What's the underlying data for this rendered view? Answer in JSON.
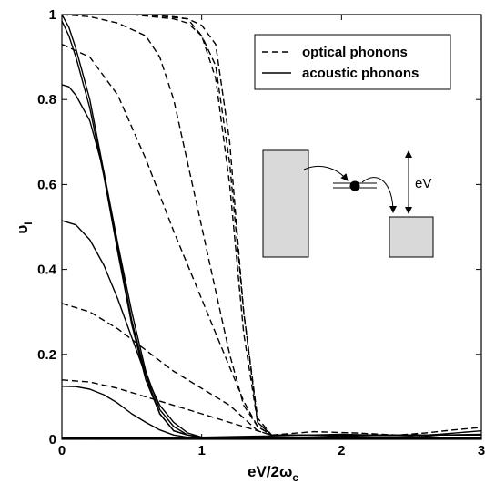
{
  "chart_data": {
    "type": "line",
    "xlabel": "eV/2ω",
    "xlabel_sub": "c",
    "ylabel": "υ",
    "ylabel_sub": "I",
    "xlim": [
      0,
      3
    ],
    "ylim": [
      0,
      1
    ],
    "xticks": [
      0,
      1,
      2,
      3
    ],
    "xtick_labels": [
      "0",
      "1",
      "2",
      "3"
    ],
    "yticks": [
      0,
      0.2,
      0.4,
      0.6,
      0.8,
      1
    ],
    "ytick_labels": [
      "0",
      "0.2",
      "0.4",
      "0.6",
      "0.8",
      "1"
    ],
    "grid": false,
    "legend": {
      "placement": "top-right",
      "entries": [
        {
          "label": "optical phonons",
          "style": "dashed"
        },
        {
          "label": "acoustic phonons",
          "style": "solid"
        }
      ]
    },
    "inset": {
      "label": "eV"
    },
    "series": [
      {
        "style": "dashed",
        "points": [
          [
            0,
            1
          ],
          [
            0.3,
            1
          ],
          [
            0.6,
            1
          ],
          [
            0.9,
            0.99
          ],
          [
            1.0,
            0.95
          ],
          [
            1.1,
            0.85
          ],
          [
            1.2,
            0.6
          ],
          [
            1.3,
            0.25
          ],
          [
            1.4,
            0.04
          ],
          [
            1.5,
            0.01
          ],
          [
            2.0,
            0.01
          ],
          [
            2.5,
            0.01
          ],
          [
            3.0,
            0.01
          ]
        ]
      },
      {
        "style": "dashed",
        "points": [
          [
            0,
            1
          ],
          [
            0.5,
            1
          ],
          [
            0.8,
            0.99
          ],
          [
            0.9,
            0.98
          ],
          [
            1.0,
            0.95
          ],
          [
            1.1,
            0.88
          ],
          [
            1.2,
            0.65
          ],
          [
            1.3,
            0.3
          ],
          [
            1.4,
            0.05
          ],
          [
            1.5,
            0.01
          ],
          [
            2.0,
            0.01
          ],
          [
            2.5,
            0.01
          ],
          [
            3.0,
            0.01
          ]
        ]
      },
      {
        "style": "dashed",
        "points": [
          [
            0,
            1
          ],
          [
            0.5,
            1
          ],
          [
            0.8,
            0.995
          ],
          [
            0.9,
            0.99
          ],
          [
            1.0,
            0.975
          ],
          [
            1.1,
            0.93
          ],
          [
            1.2,
            0.7
          ],
          [
            1.3,
            0.3
          ],
          [
            1.4,
            0.04
          ],
          [
            1.5,
            0.01
          ],
          [
            2.0,
            0.01
          ],
          [
            2.5,
            0.01
          ],
          [
            3.0,
            0.01
          ]
        ]
      },
      {
        "style": "dashed",
        "points": [
          [
            0,
            1
          ],
          [
            0.2,
            0.995
          ],
          [
            0.4,
            0.98
          ],
          [
            0.6,
            0.95
          ],
          [
            0.7,
            0.9
          ],
          [
            0.8,
            0.8
          ],
          [
            0.9,
            0.65
          ],
          [
            1.0,
            0.5
          ],
          [
            1.1,
            0.35
          ],
          [
            1.2,
            0.2
          ],
          [
            1.3,
            0.08
          ],
          [
            1.4,
            0.03
          ],
          [
            1.5,
            0.01
          ],
          [
            2.0,
            0.01
          ],
          [
            2.5,
            0.01
          ],
          [
            3.0,
            0.01
          ]
        ]
      },
      {
        "style": "dashed",
        "points": [
          [
            0,
            0.93
          ],
          [
            0.2,
            0.9
          ],
          [
            0.4,
            0.81
          ],
          [
            0.6,
            0.66
          ],
          [
            0.8,
            0.49
          ],
          [
            0.9,
            0.41
          ],
          [
            1.0,
            0.33
          ],
          [
            1.1,
            0.25
          ],
          [
            1.2,
            0.17
          ],
          [
            1.3,
            0.09
          ],
          [
            1.4,
            0.03
          ],
          [
            1.5,
            0.01
          ],
          [
            2.0,
            0.01
          ],
          [
            2.5,
            0.01
          ],
          [
            3.0,
            0.01
          ]
        ]
      },
      {
        "style": "dashed",
        "points": [
          [
            0,
            0.32
          ],
          [
            0.2,
            0.3
          ],
          [
            0.4,
            0.26
          ],
          [
            0.6,
            0.21
          ],
          [
            0.8,
            0.16
          ],
          [
            1.0,
            0.12
          ],
          [
            1.2,
            0.08
          ],
          [
            1.3,
            0.05
          ],
          [
            1.4,
            0.02
          ],
          [
            1.5,
            0.01
          ],
          [
            2.0,
            0.01
          ],
          [
            2.5,
            0.01
          ],
          [
            3.0,
            0.01
          ]
        ]
      },
      {
        "style": "dashed",
        "points": [
          [
            0,
            0.14
          ],
          [
            0.2,
            0.135
          ],
          [
            0.4,
            0.12
          ],
          [
            0.6,
            0.1
          ],
          [
            0.8,
            0.08
          ],
          [
            1.0,
            0.06
          ],
          [
            1.2,
            0.04
          ],
          [
            1.4,
            0.02
          ],
          [
            1.5,
            0.01
          ],
          [
            2.0,
            0.01
          ],
          [
            2.5,
            0.01
          ],
          [
            3.0,
            0.01
          ]
        ]
      },
      {
        "style": "solid",
        "points": [
          [
            0,
            1
          ],
          [
            0.05,
            0.97
          ],
          [
            0.1,
            0.92
          ],
          [
            0.2,
            0.8
          ],
          [
            0.3,
            0.63
          ],
          [
            0.4,
            0.45
          ],
          [
            0.5,
            0.28
          ],
          [
            0.6,
            0.15
          ],
          [
            0.7,
            0.06
          ],
          [
            0.8,
            0.02
          ],
          [
            0.9,
            0.01
          ],
          [
            1.0,
            0.005
          ],
          [
            3.0,
            0.005
          ]
        ]
      },
      {
        "style": "solid",
        "points": [
          [
            0,
            0.985
          ],
          [
            0.05,
            0.95
          ],
          [
            0.1,
            0.9
          ],
          [
            0.2,
            0.78
          ],
          [
            0.3,
            0.62
          ],
          [
            0.4,
            0.44
          ],
          [
            0.5,
            0.27
          ],
          [
            0.6,
            0.14
          ],
          [
            0.7,
            0.06
          ],
          [
            0.8,
            0.02
          ],
          [
            0.9,
            0.01
          ],
          [
            1.0,
            0.005
          ],
          [
            3.0,
            0.005
          ]
        ]
      },
      {
        "style": "solid",
        "points": [
          [
            0,
            0.835
          ],
          [
            0.05,
            0.83
          ],
          [
            0.1,
            0.81
          ],
          [
            0.2,
            0.75
          ],
          [
            0.3,
            0.63
          ],
          [
            0.4,
            0.46
          ],
          [
            0.5,
            0.3
          ],
          [
            0.6,
            0.16
          ],
          [
            0.7,
            0.07
          ],
          [
            0.8,
            0.03
          ],
          [
            0.9,
            0.01
          ],
          [
            1.0,
            0.005
          ],
          [
            3.0,
            0.005
          ]
        ]
      },
      {
        "style": "solid",
        "points": [
          [
            0,
            0.515
          ],
          [
            0.1,
            0.505
          ],
          [
            0.2,
            0.47
          ],
          [
            0.3,
            0.41
          ],
          [
            0.4,
            0.33
          ],
          [
            0.5,
            0.24
          ],
          [
            0.6,
            0.15
          ],
          [
            0.7,
            0.08
          ],
          [
            0.8,
            0.04
          ],
          [
            0.9,
            0.015
          ],
          [
            1.0,
            0.005
          ],
          [
            3.0,
            0.005
          ]
        ]
      },
      {
        "style": "solid",
        "points": [
          [
            0,
            0.125
          ],
          [
            0.1,
            0.124
          ],
          [
            0.2,
            0.118
          ],
          [
            0.3,
            0.105
          ],
          [
            0.4,
            0.085
          ],
          [
            0.5,
            0.06
          ],
          [
            0.6,
            0.04
          ],
          [
            0.7,
            0.022
          ],
          [
            0.8,
            0.01
          ],
          [
            0.9,
            0.005
          ],
          [
            1.0,
            0.002
          ],
          [
            3.0,
            0.002
          ]
        ]
      },
      {
        "style": "solid",
        "points": [
          [
            0,
            0.005
          ],
          [
            1.0,
            0.005
          ],
          [
            1.5,
            0.008
          ],
          [
            2.0,
            0.012
          ],
          [
            2.5,
            0.008
          ],
          [
            2.7,
            0.012
          ],
          [
            3.0,
            0.02
          ]
        ]
      },
      {
        "style": "solid",
        "points": [
          [
            0,
            0.002
          ],
          [
            1.5,
            0.003
          ],
          [
            2.0,
            0.008
          ],
          [
            2.5,
            0.004
          ],
          [
            2.7,
            0.01
          ],
          [
            3.0,
            0.012
          ]
        ]
      },
      {
        "style": "dashed",
        "points": [
          [
            1.5,
            0.01
          ],
          [
            1.8,
            0.018
          ],
          [
            2.1,
            0.015
          ],
          [
            2.4,
            0.01
          ],
          [
            2.6,
            0.015
          ],
          [
            2.8,
            0.022
          ],
          [
            3.0,
            0.028
          ]
        ]
      }
    ]
  }
}
